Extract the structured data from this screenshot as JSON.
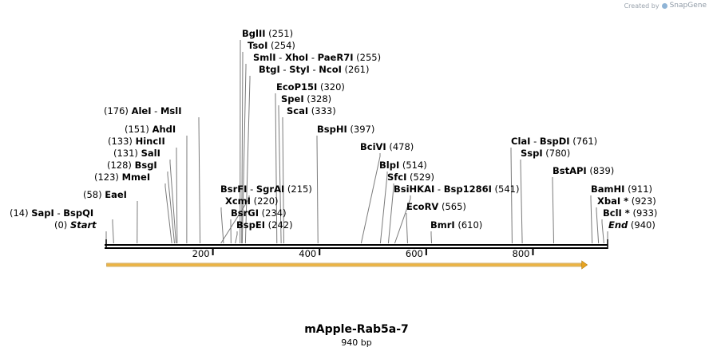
{
  "credit": {
    "prefix": "Created by",
    "brand": "SnapGene"
  },
  "map": {
    "title": "mApple-Rab5a-7",
    "length_label": "940 bp",
    "length": 940,
    "ruler": [
      "200",
      "400",
      "600",
      "800"
    ],
    "feature": {
      "start": 1,
      "end": 902,
      "color": "#e7a321"
    },
    "label_rows": [
      {
        "items": [
          {
            "name": "BglII",
            "pos": "(251)"
          }
        ],
        "site": 251
      },
      {
        "items": [
          {
            "name": "TsoI",
            "pos": "(254)"
          }
        ],
        "site": 254
      },
      {
        "items": [
          {
            "name": "SmlI"
          },
          {
            "name": "XhoI"
          },
          {
            "name": "PaeR7I",
            "pos": "(255)"
          }
        ],
        "site": 255
      },
      {
        "items": [
          {
            "name": "BtgI"
          },
          {
            "name": "StyI"
          },
          {
            "name": "NcoI",
            "pos": "(261)"
          }
        ],
        "site": 261
      },
      {
        "items": [
          {
            "name": "EcoP15I",
            "pos": "(320)"
          }
        ],
        "site": 320
      },
      {
        "items": [
          {
            "name": "SpeI",
            "pos": "(328)"
          }
        ],
        "site": 328
      },
      {
        "items": [
          {
            "name": "ScaI",
            "pos": "(333)"
          }
        ],
        "site": 333
      },
      {
        "items": [
          {
            "pos": "(176)",
            "before": true
          },
          {
            "name": "AleI"
          },
          {
            "name": "MslI"
          }
        ],
        "site": 176
      },
      {
        "items": [
          {
            "name": "BspHI",
            "pos": "(397)"
          }
        ],
        "site": 397
      },
      {
        "items": [
          {
            "pos": "(151)",
            "before": true
          },
          {
            "name": "AhdI"
          }
        ],
        "site": 151
      },
      {
        "items": [
          {
            "name": "ClaI"
          },
          {
            "name": "BspDI",
            "pos": "(761)"
          }
        ],
        "site": 761
      },
      {
        "items": [
          {
            "pos": "(133)",
            "before": true
          },
          {
            "name": "HincII"
          }
        ],
        "site": 133
      },
      {
        "items": [
          {
            "name": "BciVI",
            "pos": "(478)"
          }
        ],
        "site": 478
      },
      {
        "items": [
          {
            "pos": "(131)",
            "before": true
          },
          {
            "name": "SalI"
          }
        ],
        "site": 131
      },
      {
        "items": [
          {
            "name": "SspI",
            "pos": "(780)"
          }
        ],
        "site": 780
      },
      {
        "items": [
          {
            "pos": "(128)",
            "before": true
          },
          {
            "name": "BsgI"
          }
        ],
        "site": 128
      },
      {
        "items": [
          {
            "name": "BlpI",
            "pos": "(514)"
          }
        ],
        "site": 514
      },
      {
        "items": [
          {
            "name": "BstAPI",
            "pos": "(839)"
          }
        ],
        "site": 839
      },
      {
        "items": [
          {
            "pos": "(123)",
            "before": true
          },
          {
            "name": "MmeI"
          }
        ],
        "site": 123
      },
      {
        "items": [
          {
            "name": "SfcI",
            "pos": "(529)"
          }
        ],
        "site": 529
      },
      {
        "items": [
          {
            "name": "BsrFI"
          },
          {
            "name": "SgrAI",
            "pos": "(215)"
          }
        ],
        "site": 215
      },
      {
        "items": [
          {
            "name": "BsiHKAI"
          },
          {
            "name": "Bsp1286I",
            "pos": "(541)"
          }
        ],
        "site": 541
      },
      {
        "items": [
          {
            "name": "BamHI",
            "pos": "(911)"
          }
        ],
        "site": 911
      },
      {
        "items": [
          {
            "pos": "(58)",
            "before": true
          },
          {
            "name": "EaeI"
          }
        ],
        "site": 58
      },
      {
        "items": [
          {
            "name": "XcmI",
            "pos": "(220)"
          }
        ],
        "site": 220
      },
      {
        "items": [
          {
            "name": "XbaI *",
            "pos": "(923)"
          }
        ],
        "site": 923
      },
      {
        "items": [
          {
            "name": "EcoRV",
            "pos": "(565)"
          }
        ],
        "site": 565
      },
      {
        "items": [
          {
            "pos": "(14)",
            "before": true
          },
          {
            "name": "SapI"
          },
          {
            "name": "BspQI"
          }
        ],
        "site": 14
      },
      {
        "items": [
          {
            "name": "BsrGI",
            "pos": "(234)"
          }
        ],
        "site": 234
      },
      {
        "items": [
          {
            "name": "BclI *",
            "pos": "(933)"
          }
        ],
        "site": 933
      },
      {
        "items": [
          {
            "pos": "(0)",
            "before": true
          },
          {
            "name": "Start",
            "italic": true
          }
        ],
        "site": 0
      },
      {
        "items": [
          {
            "name": "BspEI",
            "pos": "(242)"
          }
        ],
        "site": 242
      },
      {
        "items": [
          {
            "name": "BmrI",
            "pos": "(610)"
          }
        ],
        "site": 610
      },
      {
        "items": [
          {
            "name": "End",
            "italic": true,
            "pos": "(940)"
          }
        ],
        "site": 940
      }
    ]
  }
}
